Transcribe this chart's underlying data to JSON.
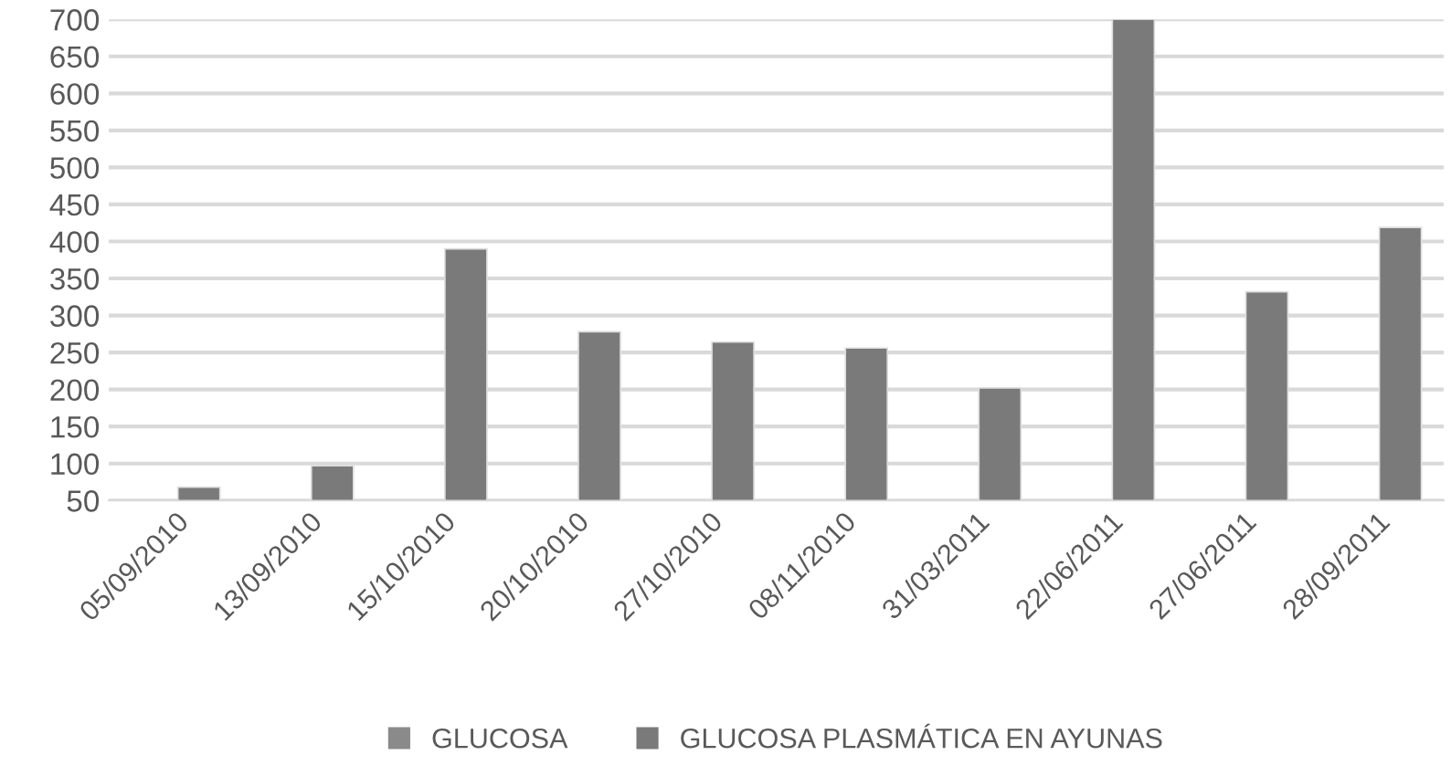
{
  "chart_data": {
    "type": "bar",
    "categories": [
      "05/09/2010",
      "13/09/2010",
      "15/10/2010",
      "20/10/2010",
      "27/10/2010",
      "08/11/2010",
      "31/03/2011",
      "22/06/2011",
      "27/06/2011",
      "28/09/2011"
    ],
    "series": [
      {
        "name": "GLUCOSA",
        "color": "#8a8a8a",
        "values": [
          null,
          null,
          null,
          null,
          null,
          null,
          null,
          null,
          null,
          null
        ]
      },
      {
        "name": "GLUCOSA PLASMÁTICA EN AYUNAS",
        "color": "#7a7a7a",
        "values": [
          68,
          97,
          390,
          278,
          264,
          256,
          202,
          700,
          332,
          419
        ]
      }
    ],
    "ylim": [
      50,
      700
    ],
    "yticks": [
      50,
      100,
      150,
      200,
      250,
      300,
      350,
      400,
      450,
      500,
      550,
      600,
      650,
      700
    ],
    "grid": "y",
    "legend": "bottom"
  }
}
